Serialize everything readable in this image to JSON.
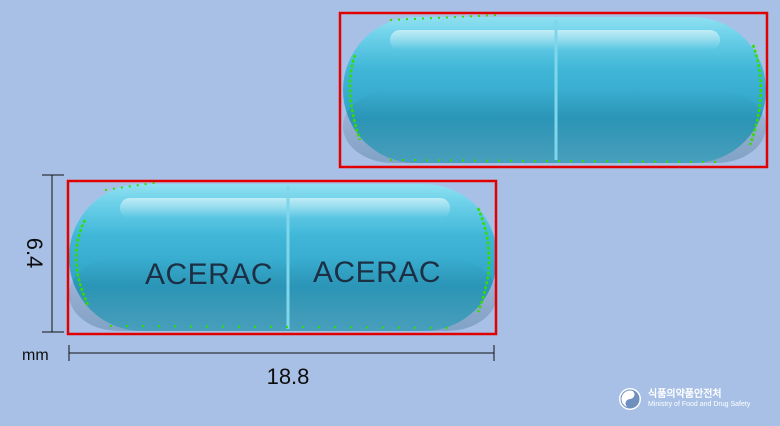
{
  "image": {
    "background_color": "#a8c0e6",
    "capsule_color": "#3aaed0",
    "box_color": "#e00000",
    "contour_color": "#33dd00"
  },
  "front_capsule": {
    "imprint_left": "ACERAC",
    "imprint_right": "ACERAC"
  },
  "dimensions": {
    "width_value": "6.4",
    "length_value": "18.8",
    "unit": "mm"
  },
  "watermark": {
    "korean": "식품의약품안전처",
    "english": "Ministry of Food and Drug Safety"
  }
}
